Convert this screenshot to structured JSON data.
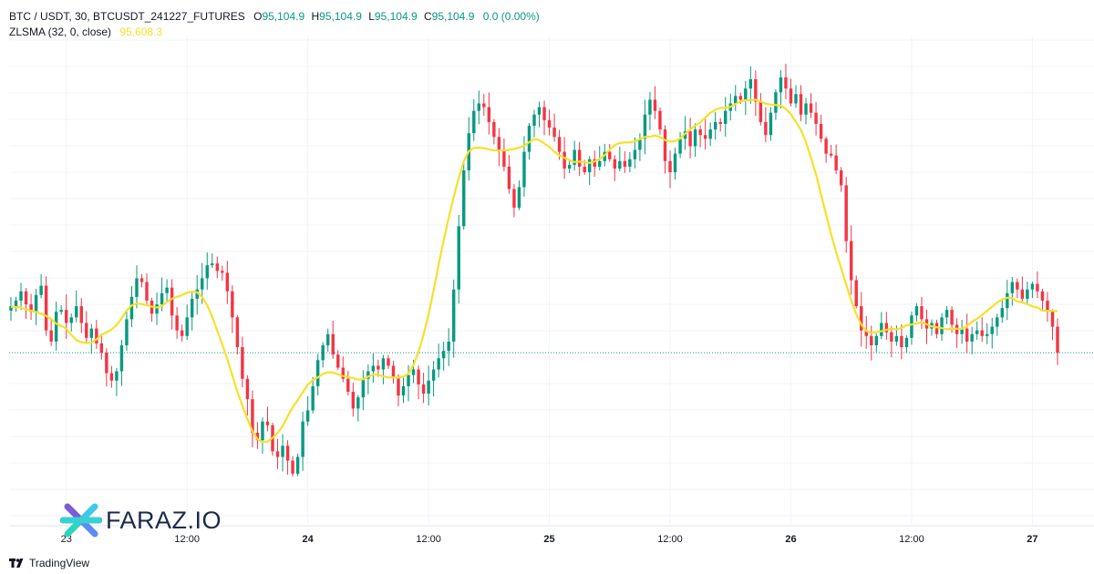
{
  "legend": {
    "symbol": "BTC / USDT, 30, BTCUSDT_241227_FUTURES",
    "o_label": "O",
    "o_value": "95,104.9",
    "h_label": "H",
    "h_value": "95,104.9",
    "l_label": "L",
    "l_value": "95,104.9",
    "c_label": "C",
    "c_value": "95,104.9",
    "change": "0.0 (0.00%)",
    "indicator_name": "ZLSMA (32, 0, close)",
    "indicator_value": "95,608.3"
  },
  "brand": {
    "text": "FARAZ.IO"
  },
  "footer": {
    "text": "TradingView"
  },
  "colors": {
    "up": "#089981",
    "down": "#f23645",
    "zlsma": "#f7e02a",
    "grid": "#f0f3fa",
    "price_line": "#089981"
  },
  "chart_data": {
    "type": "candlestick",
    "series": [
      {
        "name": "BTC / USDT, 30, BTCUSDT_241227_FUTURES"
      },
      {
        "name": "ZLSMA (32, 0, close)"
      }
    ],
    "x_tick_labels": [
      {
        "text": "23",
        "bold": false
      },
      {
        "text": "12:00",
        "bold": false
      },
      {
        "text": "24",
        "bold": true
      },
      {
        "text": "12:00",
        "bold": false
      },
      {
        "text": "25",
        "bold": true
      },
      {
        "text": "12:00",
        "bold": false
      },
      {
        "text": "26",
        "bold": true
      },
      {
        "text": "12:00",
        "bold": false
      },
      {
        "text": "27",
        "bold": true
      },
      {
        "text": "12:00",
        "bold": false
      }
    ],
    "candles_per_tick": 24,
    "tick_offset": 11,
    "closes": [
      95650,
      95800,
      96050,
      95700,
      95500,
      95950,
      96200,
      95000,
      94700,
      95500,
      95550,
      95200,
      95350,
      95650,
      95200,
      94800,
      95050,
      94650,
      94400,
      93850,
      93650,
      93900,
      94600,
      95300,
      95900,
      96400,
      96300,
      95800,
      95450,
      95700,
      96000,
      96150,
      95400,
      95000,
      94850,
      95350,
      95850,
      96100,
      96400,
      96750,
      96800,
      96600,
      96550,
      96050,
      95350,
      94550,
      93700,
      93150,
      92250,
      92050,
      92550,
      92450,
      91750,
      91600,
      91900,
      91500,
      91150,
      91600,
      92550,
      92850,
      93500,
      94200,
      94600,
      94900,
      94350,
      94000,
      93700,
      93350,
      92900,
      93200,
      93700,
      93900,
      94050,
      93950,
      94250,
      94050,
      93750,
      93250,
      93500,
      93800,
      93950,
      93550,
      93300,
      93650,
      93950,
      94250,
      94450,
      94700,
      96100,
      97800,
      99300,
      100300,
      100900,
      101100,
      101000,
      100600,
      100200,
      99850,
      99400,
      98800,
      98300,
      98850,
      99800,
      100500,
      100800,
      101000,
      100650,
      100450,
      100200,
      99800,
      99350,
      99450,
      99850,
      99400,
      99250,
      99600,
      99400,
      99550,
      99800,
      99600,
      99350,
      99550,
      99400,
      99600,
      99850,
      100150,
      100800,
      101200,
      100900,
      100400,
      99550,
      99250,
      99750,
      100150,
      100350,
      99950,
      100400,
      100250,
      100150,
      100400,
      100600,
      100550,
      100900,
      101100,
      101300,
      101200,
      101500,
      101750,
      101150,
      100600,
      100250,
      100850,
      101400,
      101800,
      101500,
      101100,
      101350,
      100800,
      101100,
      100850,
      100550,
      100150,
      99750,
      99700,
      99300,
      98900,
      97400,
      96350,
      95650,
      95000,
      94850,
      94600,
      94850,
      95200,
      94950,
      94700,
      94850,
      94550,
      94800,
      95400,
      95650,
      95300,
      95050,
      95200,
      94900,
      95350,
      95550,
      95150,
      94900,
      95050,
      94700,
      94900,
      95000,
      94850,
      94900,
      95100,
      95350,
      95600,
      96000,
      96300,
      96100,
      95850,
      96100,
      96250,
      96050,
      95800,
      95500,
      95100,
      94400
    ],
    "ylim": [
      89800,
      102900
    ]
  }
}
